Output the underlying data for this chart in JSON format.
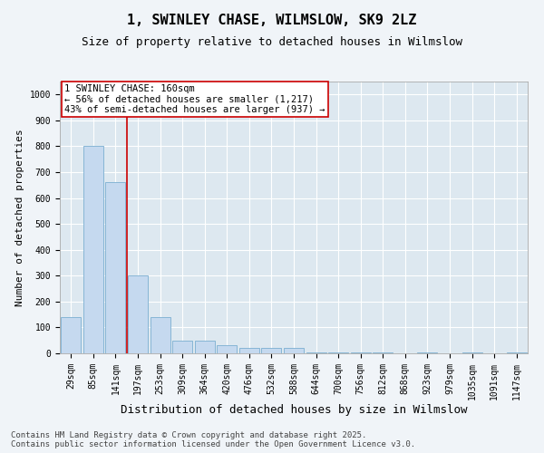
{
  "title": "1, SWINLEY CHASE, WILMSLOW, SK9 2LZ",
  "subtitle": "Size of property relative to detached houses in Wilmslow",
  "xlabel": "Distribution of detached houses by size in Wilmslow",
  "ylabel": "Number of detached properties",
  "categories": [
    "29sqm",
    "85sqm",
    "141sqm",
    "197sqm",
    "253sqm",
    "309sqm",
    "364sqm",
    "420sqm",
    "476sqm",
    "532sqm",
    "588sqm",
    "644sqm",
    "700sqm",
    "756sqm",
    "812sqm",
    "868sqm",
    "923sqm",
    "979sqm",
    "1035sqm",
    "1091sqm",
    "1147sqm"
  ],
  "values": [
    140,
    800,
    660,
    300,
    140,
    50,
    50,
    30,
    20,
    20,
    20,
    5,
    5,
    5,
    5,
    0,
    5,
    0,
    5,
    0,
    5
  ],
  "bar_color": "#c5d9ef",
  "bar_edge_color": "#7aaed0",
  "background_color": "#dde8f0",
  "grid_color": "#ffffff",
  "annotation_text": "1 SWINLEY CHASE: 160sqm\n← 56% of detached houses are smaller (1,217)\n43% of semi-detached houses are larger (937) →",
  "annotation_box_color": "#ffffff",
  "annotation_border_color": "#cc0000",
  "vline_color": "#cc0000",
  "ylim": [
    0,
    1050
  ],
  "yticks": [
    0,
    100,
    200,
    300,
    400,
    500,
    600,
    700,
    800,
    900,
    1000
  ],
  "footer": "Contains HM Land Registry data © Crown copyright and database right 2025.\nContains public sector information licensed under the Open Government Licence v3.0.",
  "title_fontsize": 11,
  "subtitle_fontsize": 9,
  "xlabel_fontsize": 9,
  "ylabel_fontsize": 8,
  "tick_fontsize": 7,
  "annotation_fontsize": 7.5,
  "footer_fontsize": 6.5
}
